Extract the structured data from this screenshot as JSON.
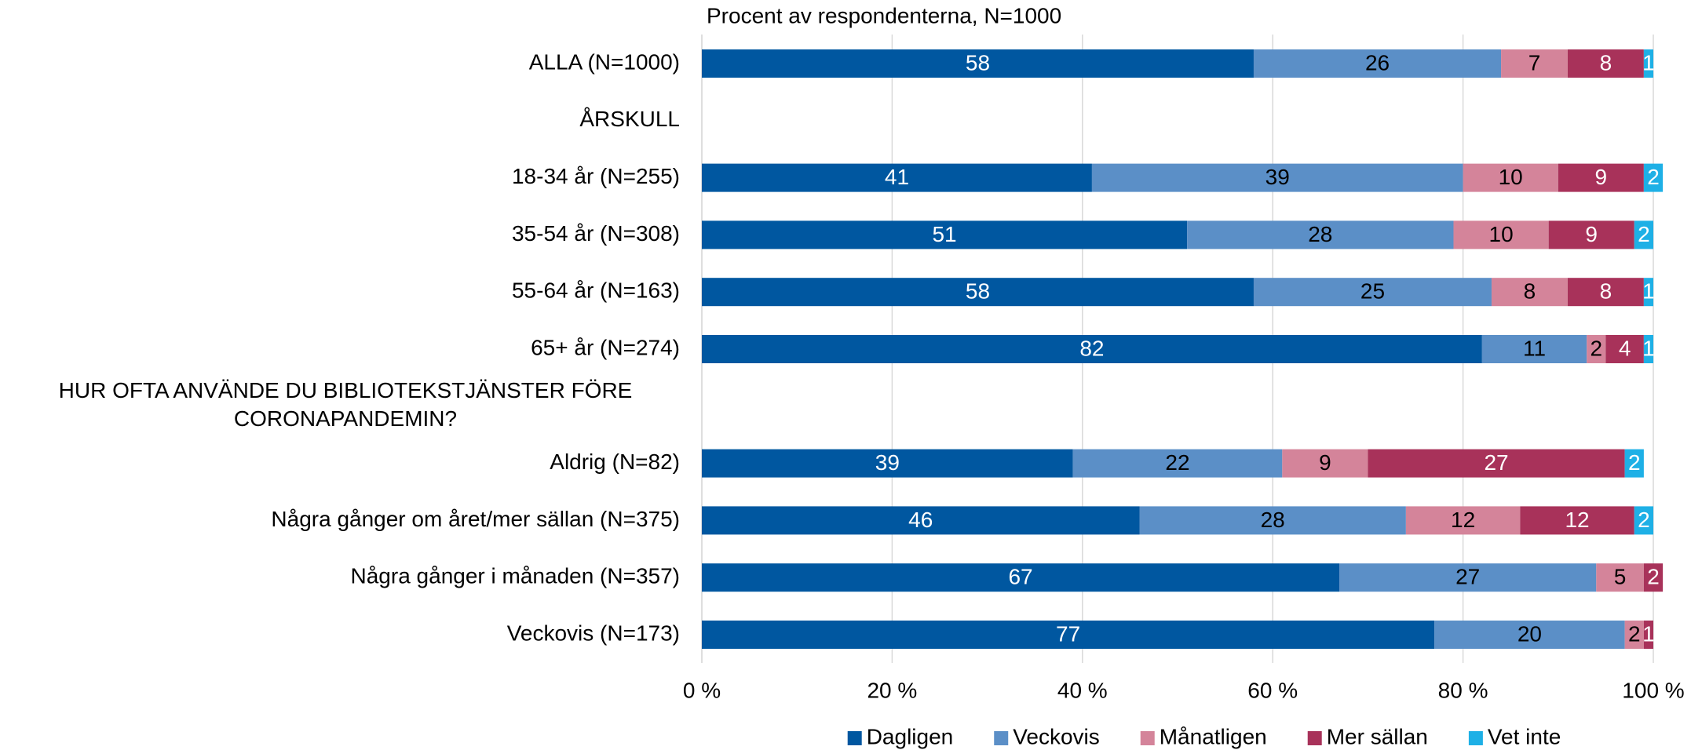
{
  "chart_data": {
    "type": "stacked-bar-horizontal",
    "title": "Procent av respondenterna, N=1000",
    "categories": [
      "ALLA (N=1000)",
      "ÅRSKULL",
      "18-34 år (N=255)",
      "35-54 år (N=308)",
      "55-64 år (N=163)",
      "65+ år (N=274)",
      "HUR OFTA ANVÄNDE DU BIBLIOTEKSTJÄNSTER FÖRE CORONAPANDEMIN?",
      "Aldrig (N=82)",
      "Några gånger om året/mer sällan (N=375)",
      "Några gånger i månaden (N=357)",
      "Veckovis (N=173)"
    ],
    "series": [
      {
        "name": "Dagligen",
        "color": "#0057a0",
        "values": [
          58,
          null,
          41,
          51,
          58,
          82,
          null,
          39,
          46,
          67,
          77
        ]
      },
      {
        "name": "Veckovis",
        "color": "#5b8fc7",
        "values": [
          26,
          null,
          39,
          28,
          25,
          11,
          null,
          22,
          28,
          27,
          20
        ]
      },
      {
        "name": "Månatligen",
        "color": "#d4849a",
        "values": [
          7,
          null,
          10,
          10,
          8,
          2,
          null,
          9,
          12,
          5,
          2
        ]
      },
      {
        "name": "Mer sällan",
        "color": "#a8325a",
        "values": [
          8,
          null,
          9,
          9,
          8,
          4,
          null,
          27,
          12,
          2,
          1
        ]
      },
      {
        "name": "Vet inte",
        "color": "#1eb0e6",
        "values": [
          1,
          null,
          2,
          2,
          1,
          1,
          null,
          2,
          2,
          0,
          0
        ]
      }
    ],
    "xlim": [
      0,
      100
    ],
    "xticks": [
      {
        "value": 0,
        "label": "0 %"
      },
      {
        "value": 20,
        "label": "20 %"
      },
      {
        "value": 40,
        "label": "40 %"
      },
      {
        "value": 60,
        "label": "60 %"
      },
      {
        "value": 80,
        "label": "80 %"
      },
      {
        "value": 100,
        "label": "100 %"
      }
    ],
    "grid": true,
    "legend": "bottom"
  }
}
